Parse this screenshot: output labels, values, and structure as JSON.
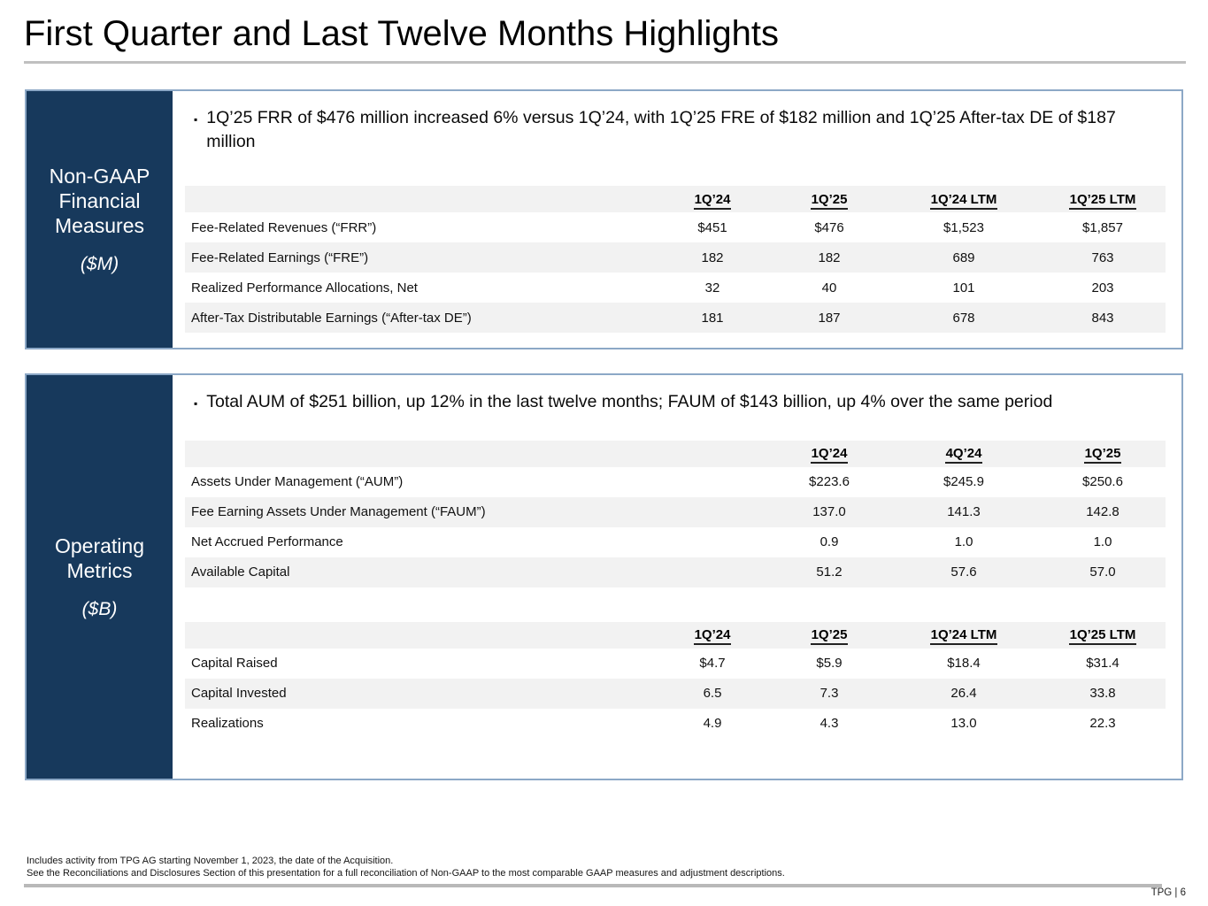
{
  "title": "First Quarter and Last Twelve Months Highlights",
  "colors": {
    "navy": "#17395c",
    "panel_border": "#8ca8c6",
    "row_stripe": "#f2f2f2",
    "rule_gray": "#c0c0c0"
  },
  "sections": {
    "non_gaap": {
      "label": "Non-GAAP Financial Measures",
      "label_lines": [
        "Non-GAAP",
        "Financial",
        "Measures"
      ],
      "unit": "($M)",
      "bullet": "1Q’25 FRR of $476 million increased 6% versus 1Q’24, with 1Q’25 FRE of $182 million and 1Q’25 After-tax DE of $187 million",
      "table": {
        "columns": [
          "1Q’24",
          "1Q’25",
          "1Q’24 LTM",
          "1Q’25 LTM"
        ],
        "rows": [
          {
            "label": "Fee-Related Revenues (“FRR”)",
            "values": [
              "$451",
              "$476",
              "$1,523",
              "$1,857"
            ]
          },
          {
            "label": "Fee-Related Earnings (“FRE”)",
            "values": [
              "182",
              "182",
              "689",
              "763"
            ]
          },
          {
            "label": "Realized Performance Allocations, Net",
            "values": [
              "32",
              "40",
              "101",
              "203"
            ]
          },
          {
            "label": "After-Tax Distributable Earnings (“After-tax DE”)",
            "values": [
              "181",
              "187",
              "678",
              "843"
            ]
          }
        ]
      }
    },
    "operating": {
      "label": "Operating Metrics",
      "label_lines": [
        "Operating",
        "Metrics"
      ],
      "unit": "($B)",
      "bullet": "Total AUM of $251 billion, up 12% in the last twelve months; FAUM of $143 billion, up 4% over the same period",
      "aum_table": {
        "columns": [
          "1Q’24",
          "4Q’24",
          "1Q’25"
        ],
        "rows": [
          {
            "label": "Assets Under Management (“AUM”)",
            "values": [
              "$223.6",
              "$245.9",
              "$250.6"
            ]
          },
          {
            "label": "Fee Earning Assets Under Management (“FAUM”)",
            "values": [
              "137.0",
              "141.3",
              "142.8"
            ]
          },
          {
            "label": "Net Accrued Performance",
            "values": [
              "0.9",
              "1.0",
              "1.0"
            ]
          },
          {
            "label": "Available Capital",
            "values": [
              "51.2",
              "57.6",
              "57.0"
            ]
          }
        ]
      },
      "capital_table": {
        "columns": [
          "1Q’24",
          "1Q’25",
          "1Q’24 LTM",
          "1Q’25 LTM"
        ],
        "rows": [
          {
            "label": "Capital Raised",
            "values": [
              "$4.7",
              "$5.9",
              "$18.4",
              "$31.4"
            ]
          },
          {
            "label": "Capital Invested",
            "values": [
              "6.5",
              "7.3",
              "26.4",
              "33.8"
            ]
          },
          {
            "label": "Realizations",
            "values": [
              "4.9",
              "4.3",
              "13.0",
              "22.3"
            ]
          }
        ]
      }
    }
  },
  "footer": {
    "footnote1": "Includes activity from TPG AG starting November 1, 2023, the date of the Acquisition.",
    "footnote2": "See the Reconciliations and Disclosures Section of this presentation for a full reconciliation of Non-GAAP to the most comparable GAAP measures and adjustment descriptions.",
    "page_label": "TPG | 6"
  }
}
